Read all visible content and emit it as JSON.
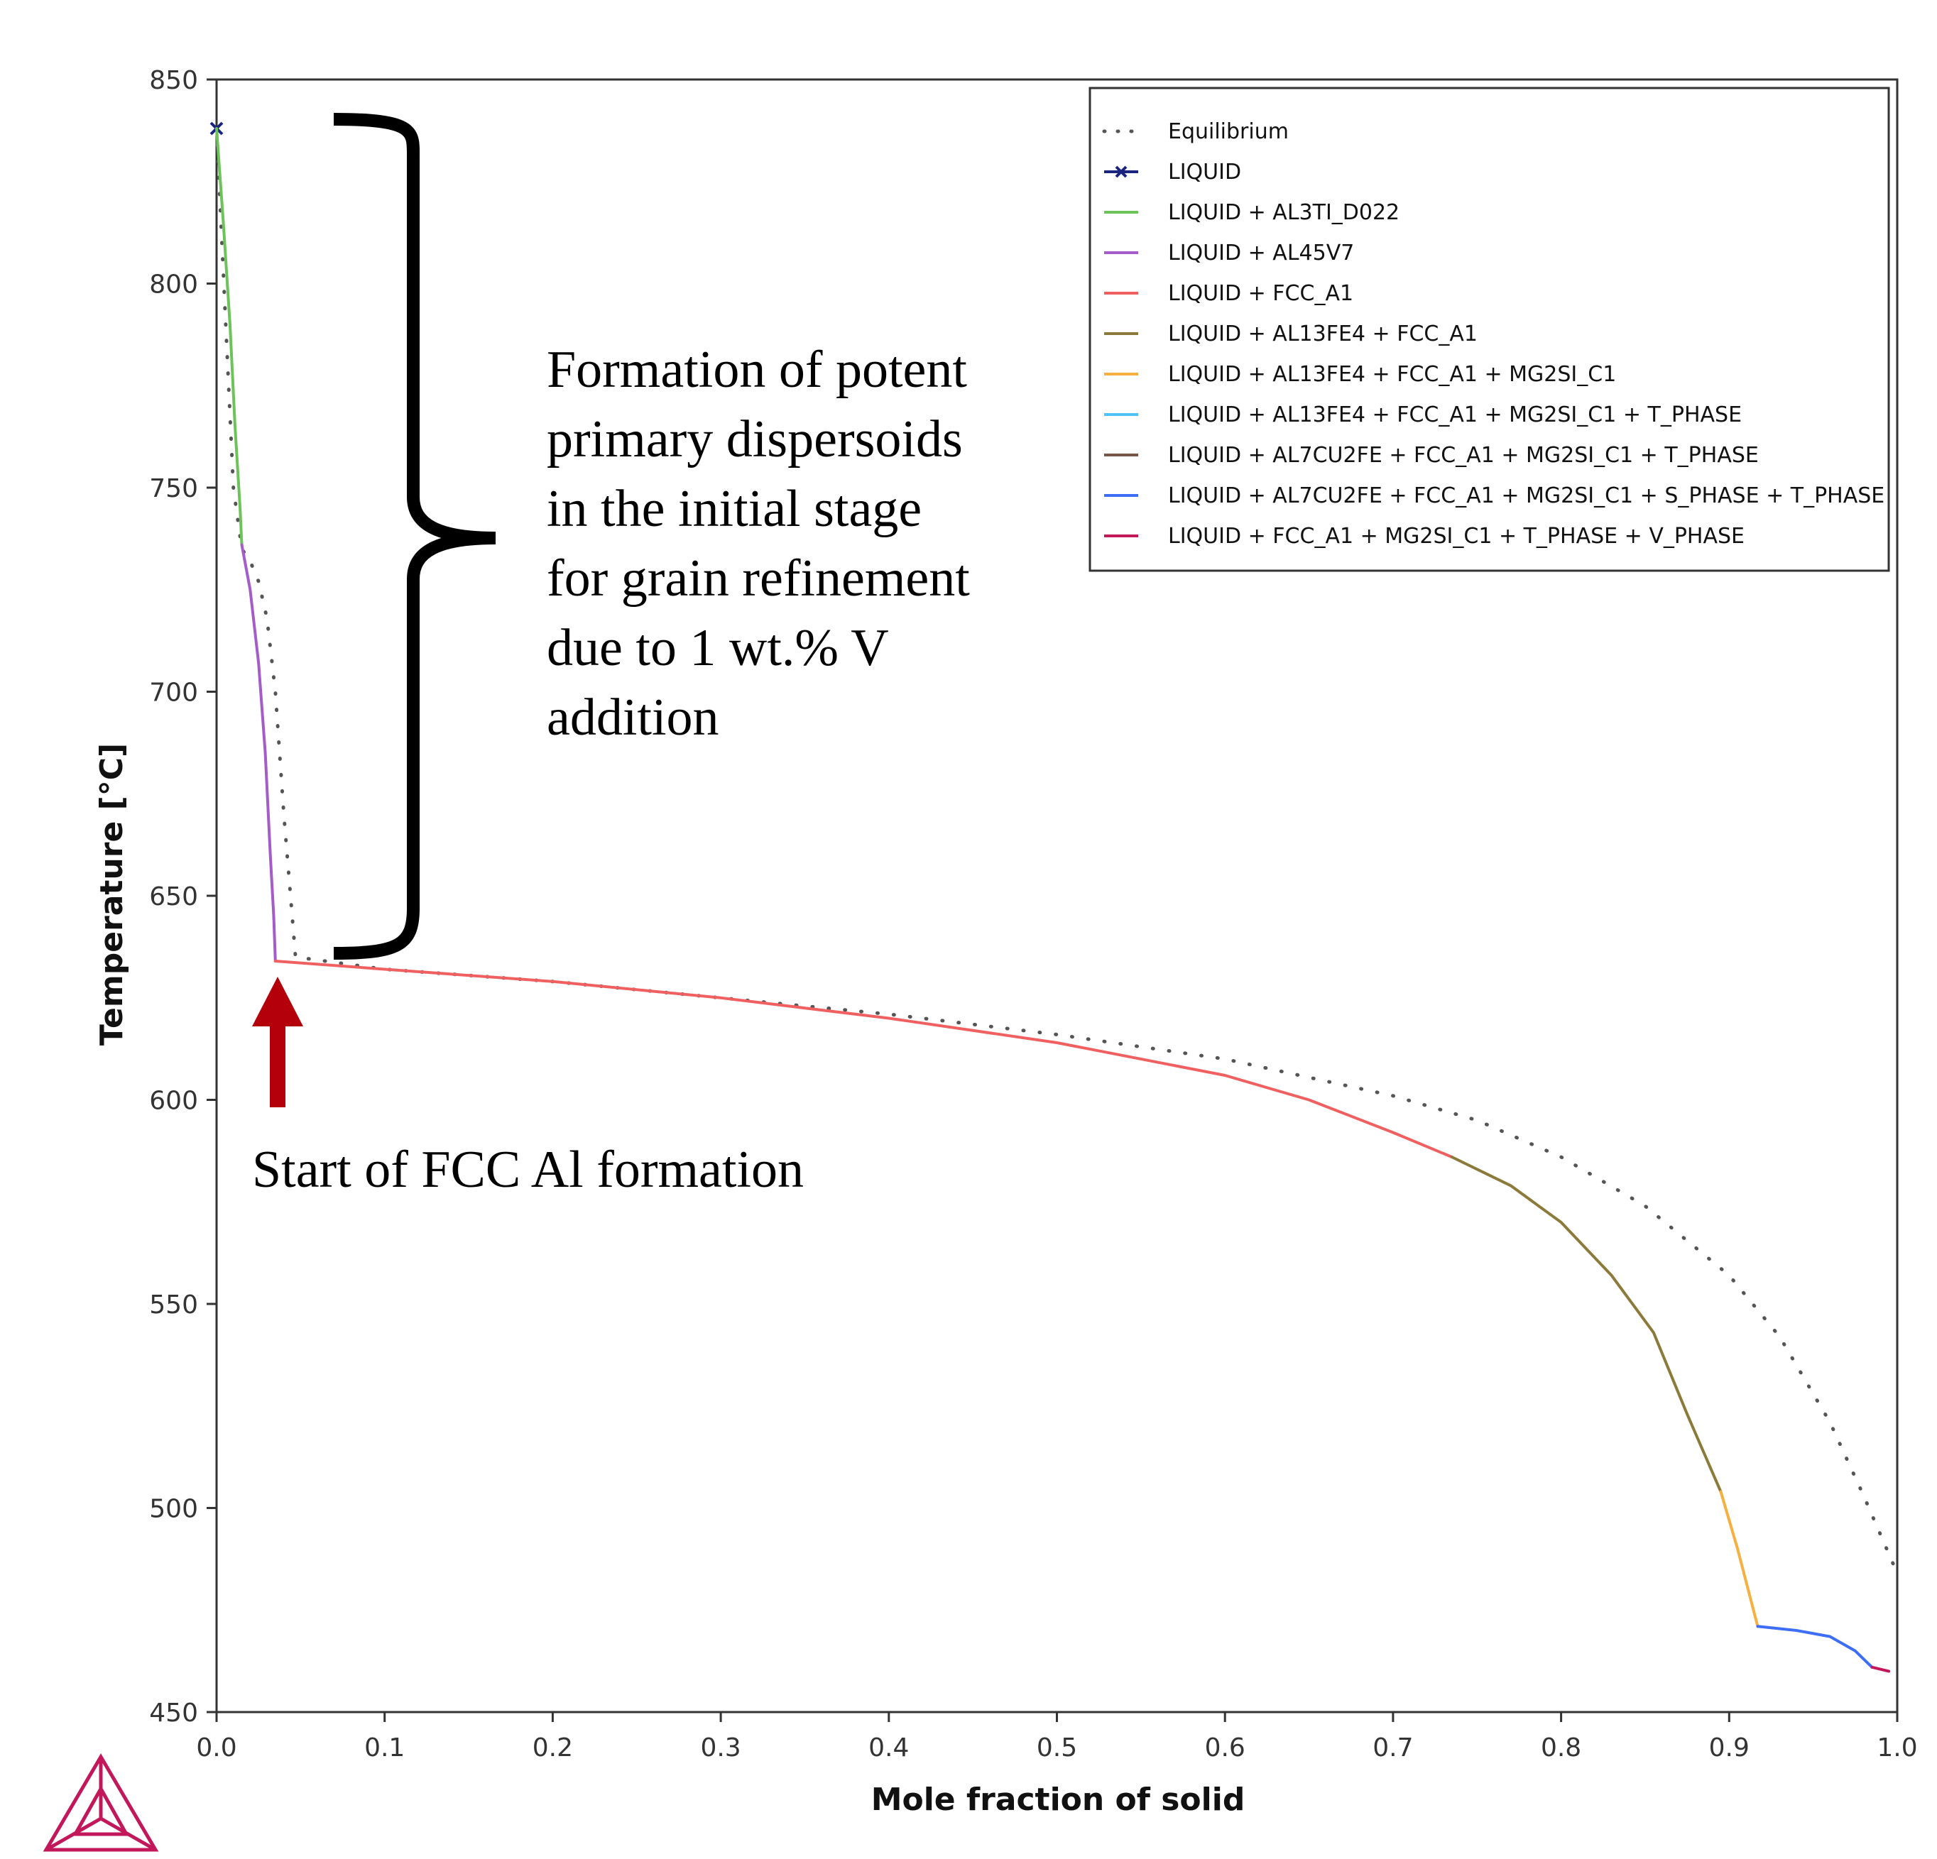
{
  "chart_data": {
    "type": "line",
    "title": "",
    "xlabel": "Mole fraction of solid",
    "ylabel": "Temperature [°C]",
    "xlim": [
      0.0,
      1.0
    ],
    "ylim": [
      450,
      850
    ],
    "x_ticks": [
      "0.0",
      "0.1",
      "0.2",
      "0.3",
      "0.4",
      "0.5",
      "0.6",
      "0.7",
      "0.8",
      "0.9",
      "1.0"
    ],
    "y_ticks": [
      "450",
      "500",
      "550",
      "600",
      "650",
      "700",
      "750",
      "800",
      "850"
    ],
    "legend_position": "top-right",
    "series": [
      {
        "name": "Equilibrium",
        "color": "#555555",
        "style": "dotted",
        "points": [
          [
            0.0,
            838
          ],
          [
            0.01,
            750
          ],
          [
            0.015,
            735
          ],
          [
            0.02,
            732
          ],
          [
            0.025,
            727
          ],
          [
            0.03,
            718
          ],
          [
            0.035,
            700
          ],
          [
            0.04,
            670
          ],
          [
            0.045,
            645
          ],
          [
            0.047,
            635
          ],
          [
            0.1,
            632
          ],
          [
            0.2,
            629
          ],
          [
            0.3,
            625
          ],
          [
            0.4,
            621
          ],
          [
            0.5,
            616
          ],
          [
            0.6,
            610
          ],
          [
            0.7,
            601
          ],
          [
            0.75,
            595
          ],
          [
            0.8,
            586
          ],
          [
            0.85,
            574
          ],
          [
            0.9,
            557
          ],
          [
            0.93,
            542
          ],
          [
            0.96,
            521
          ],
          [
            0.98,
            503
          ],
          [
            1.0,
            484
          ]
        ]
      },
      {
        "name": "LIQUID",
        "color": "#1a237e",
        "style": "marker",
        "points": [
          [
            0.0,
            838
          ]
        ]
      },
      {
        "name": "LIQUID + AL3TI_D022",
        "color": "#6cc35a",
        "style": "solid",
        "points": [
          [
            0.0,
            838
          ],
          [
            0.004,
            815
          ],
          [
            0.008,
            790
          ],
          [
            0.011,
            765
          ],
          [
            0.014,
            745
          ],
          [
            0.015,
            736
          ]
        ]
      },
      {
        "name": "LIQUID + AL45V7",
        "color": "#a45cc8",
        "style": "solid",
        "points": [
          [
            0.015,
            736
          ],
          [
            0.02,
            725
          ],
          [
            0.025,
            707
          ],
          [
            0.029,
            685
          ],
          [
            0.032,
            660
          ],
          [
            0.034,
            645
          ],
          [
            0.035,
            634
          ]
        ]
      },
      {
        "name": "LIQUID + FCC_A1",
        "color": "#f06060",
        "style": "solid",
        "points": [
          [
            0.035,
            634
          ],
          [
            0.1,
            632
          ],
          [
            0.2,
            629
          ],
          [
            0.3,
            625
          ],
          [
            0.4,
            620
          ],
          [
            0.5,
            614
          ],
          [
            0.6,
            606
          ],
          [
            0.65,
            600
          ],
          [
            0.7,
            592
          ],
          [
            0.735,
            586
          ]
        ]
      },
      {
        "name": "LIQUID + AL13FE4 + FCC_A1",
        "color": "#8b7a3a",
        "style": "solid",
        "points": [
          [
            0.735,
            586
          ],
          [
            0.77,
            579
          ],
          [
            0.8,
            570
          ],
          [
            0.83,
            557
          ],
          [
            0.855,
            543
          ],
          [
            0.875,
            523
          ],
          [
            0.895,
            504
          ]
        ]
      },
      {
        "name": "LIQUID + AL13FE4 + FCC_A1 + MG2SI_C1",
        "color": "#f5b041",
        "style": "solid",
        "points": [
          [
            0.895,
            504
          ],
          [
            0.905,
            490
          ],
          [
            0.917,
            471
          ]
        ]
      },
      {
        "name": "LIQUID + AL13FE4 + FCC_A1 + MG2SI_C1 + T_PHASE",
        "color": "#4fc3f7",
        "style": "solid",
        "points": []
      },
      {
        "name": "LIQUID + AL7CU2FE + FCC_A1 + MG2SI_C1 + T_PHASE",
        "color": "#795548",
        "style": "solid",
        "points": []
      },
      {
        "name": "LIQUID + AL7CU2FE + FCC_A1 + MG2SI_C1 + S_PHASE + T_PHASE",
        "color": "#3d6ef5",
        "style": "solid",
        "points": [
          [
            0.917,
            471
          ],
          [
            0.94,
            470
          ],
          [
            0.96,
            468.5
          ],
          [
            0.975,
            465
          ],
          [
            0.985,
            461
          ]
        ]
      },
      {
        "name": "LIQUID + FCC_A1 + MG2SI_C1 + T_PHASE + V_PHASE",
        "color": "#c2185b",
        "style": "solid",
        "points": [
          [
            0.985,
            461
          ],
          [
            0.995,
            460
          ]
        ]
      }
    ],
    "annotations": [
      {
        "id": "brace",
        "lines": [
          "Formation of potent",
          "primary dispersoids",
          "in the initial stage",
          "for grain refinement",
          "due to 1 wt.% V",
          "addition"
        ]
      },
      {
        "id": "arrow",
        "lines": [
          "Start of FCC Al formation"
        ]
      }
    ]
  },
  "logo": {
    "name": "thermo-calc-logo-icon",
    "color": "#c2185b"
  }
}
